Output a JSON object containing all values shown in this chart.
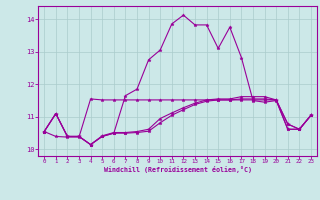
{
  "xlabel": "Windchill (Refroidissement éolien,°C)",
  "bg_color": "#cce8e8",
  "grid_color": "#aacccc",
  "line_color": "#990099",
  "xlim": [
    -0.5,
    23.5
  ],
  "ylim": [
    9.8,
    14.4
  ],
  "yticks": [
    10,
    11,
    12,
    13,
    14
  ],
  "xticks": [
    0,
    1,
    2,
    3,
    4,
    5,
    6,
    7,
    8,
    9,
    10,
    11,
    12,
    13,
    14,
    15,
    16,
    17,
    18,
    19,
    20,
    21,
    22,
    23
  ],
  "series": [
    [
      10.55,
      11.1,
      10.4,
      10.4,
      10.15,
      10.4,
      10.5,
      11.65,
      11.85,
      12.75,
      13.05,
      13.85,
      14.12,
      13.82,
      13.82,
      13.1,
      13.75,
      12.82,
      11.5,
      11.45,
      11.5,
      10.62,
      10.62,
      11.05
    ],
    [
      10.55,
      10.4,
      10.38,
      10.38,
      11.55,
      11.52,
      11.52,
      11.52,
      11.52,
      11.52,
      11.52,
      11.52,
      11.52,
      11.52,
      11.52,
      11.52,
      11.52,
      11.52,
      11.52,
      11.52,
      11.52,
      10.62,
      10.62,
      11.05
    ],
    [
      10.55,
      11.1,
      10.4,
      10.4,
      10.15,
      10.4,
      10.5,
      10.5,
      10.52,
      10.56,
      10.82,
      11.05,
      11.22,
      11.38,
      11.48,
      11.52,
      11.52,
      11.55,
      11.55,
      11.55,
      11.52,
      10.78,
      10.62,
      11.05
    ],
    [
      10.55,
      11.1,
      10.4,
      10.4,
      10.15,
      10.42,
      10.52,
      10.52,
      10.55,
      10.62,
      10.95,
      11.12,
      11.28,
      11.42,
      11.52,
      11.55,
      11.55,
      11.62,
      11.62,
      11.62,
      11.52,
      10.78,
      10.62,
      11.05
    ]
  ]
}
